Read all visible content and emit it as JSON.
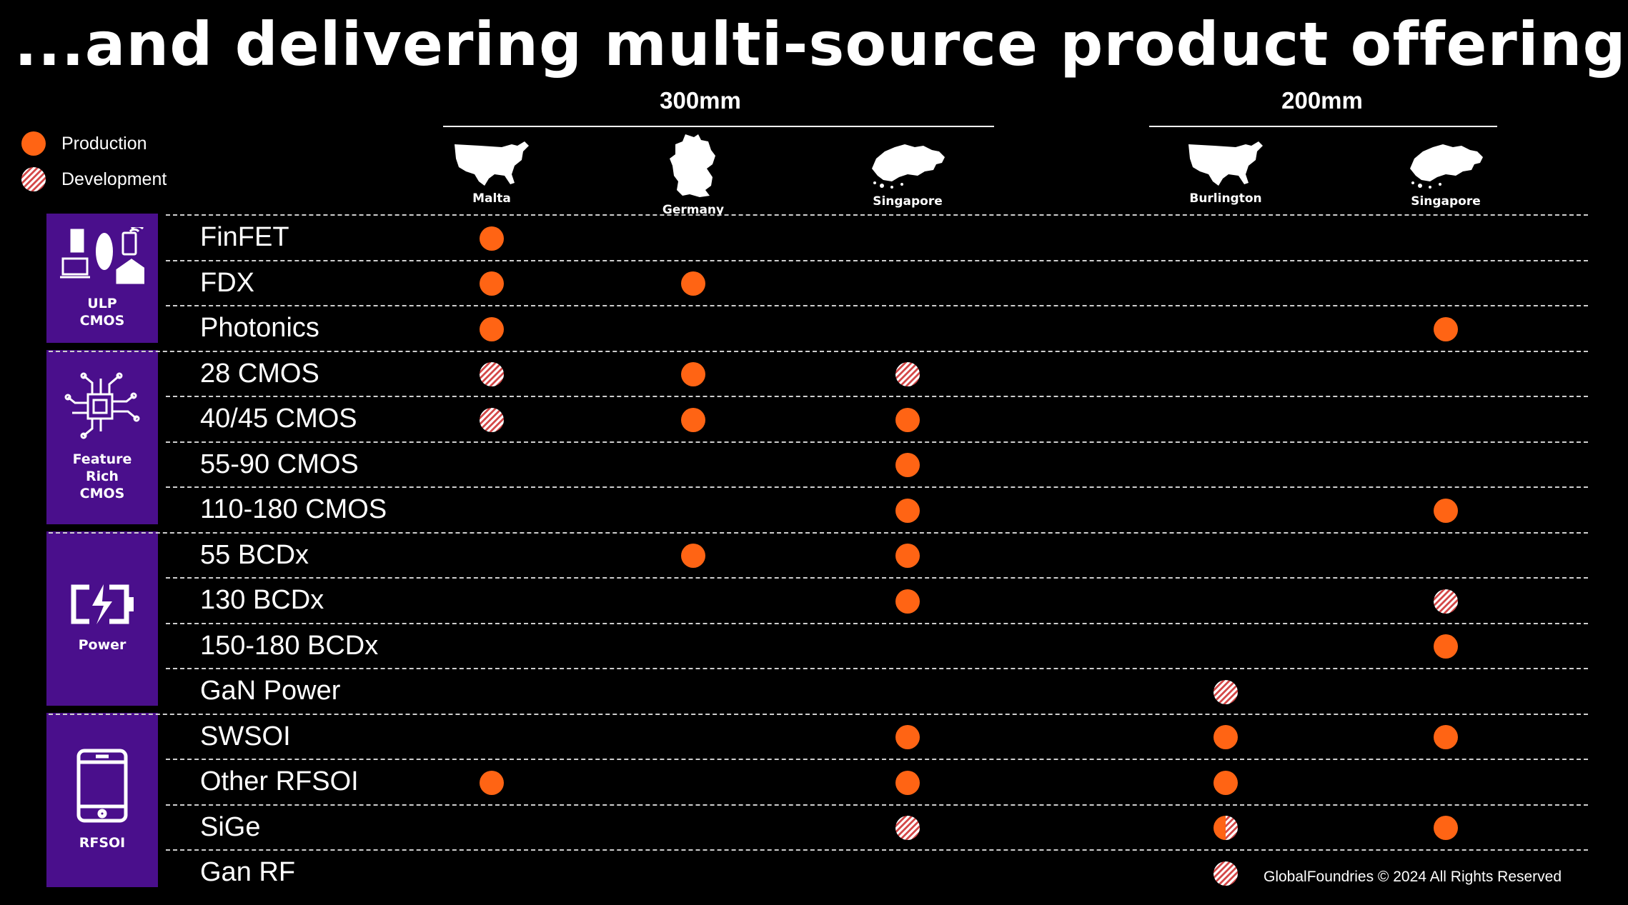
{
  "title": "...and delivering multi-source product offerings",
  "legend": [
    {
      "status": "production",
      "label": "Production"
    },
    {
      "status": "development",
      "label": "Development"
    }
  ],
  "groups": [
    {
      "label": "300mm"
    },
    {
      "label": "200mm"
    }
  ],
  "sites": [
    {
      "name": "Malta",
      "map": "usa-map-icon"
    },
    {
      "name": "Germany",
      "map": "germany-map-icon"
    },
    {
      "name": "Singapore",
      "map": "singapore-map-icon"
    },
    {
      "name": "Burlington",
      "map": "usa-map-icon"
    },
    {
      "name": "Singapore",
      "map": "singapore-map-icon"
    }
  ],
  "categories": [
    {
      "label": "ULP\nCMOS",
      "icon": "devices-icon",
      "rows": 3
    },
    {
      "label": "Feature\nRich\nCMOS",
      "icon": "circuit-chip-icon",
      "rows": 4
    },
    {
      "label": "Power",
      "icon": "battery-charging-icon",
      "rows": 4
    },
    {
      "label": "RFSOI",
      "icon": "smartphone-icon",
      "rows": 4
    }
  ],
  "rows": [
    {
      "label": "FinFET",
      "cells": [
        "production",
        null,
        null,
        null,
        null
      ]
    },
    {
      "label": "FDX",
      "cells": [
        "production",
        "production",
        null,
        null,
        null
      ]
    },
    {
      "label": "Photonics",
      "cells": [
        "production",
        null,
        null,
        null,
        "production"
      ]
    },
    {
      "label": "28 CMOS",
      "cells": [
        "development",
        "production",
        "development",
        null,
        null
      ]
    },
    {
      "label": "40/45 CMOS",
      "cells": [
        "development",
        "production",
        "production",
        null,
        null
      ]
    },
    {
      "label": "55-90 CMOS",
      "cells": [
        null,
        null,
        "production",
        null,
        null
      ]
    },
    {
      "label": "110-180 CMOS",
      "cells": [
        null,
        null,
        "production",
        null,
        "production"
      ]
    },
    {
      "label": "55 BCDx",
      "cells": [
        null,
        "production",
        "production",
        null,
        null
      ]
    },
    {
      "label": "130 BCDx",
      "cells": [
        null,
        null,
        "production",
        null,
        "development"
      ]
    },
    {
      "label": "150-180 BCDx",
      "cells": [
        null,
        null,
        null,
        null,
        "production"
      ]
    },
    {
      "label": "GaN Power",
      "cells": [
        null,
        null,
        null,
        "development",
        null
      ]
    },
    {
      "label": "SWSOI",
      "cells": [
        null,
        null,
        "production",
        "production",
        "production"
      ]
    },
    {
      "label": "Other RFSOI",
      "cells": [
        "production",
        null,
        "production",
        "production",
        null
      ]
    },
    {
      "label": "SiGe",
      "cells": [
        null,
        null,
        "development",
        "production+development",
        "production"
      ]
    },
    {
      "label": "Gan RF",
      "cells": [
        null,
        null,
        null,
        "development",
        null
      ]
    }
  ],
  "footer": "GlobalFoundries © 2024 All Rights Reserved",
  "colors": {
    "production": "#ff6414",
    "development_stripe": "#d44a4a",
    "category_bg": "#4a0f8c",
    "background": "#000000"
  }
}
